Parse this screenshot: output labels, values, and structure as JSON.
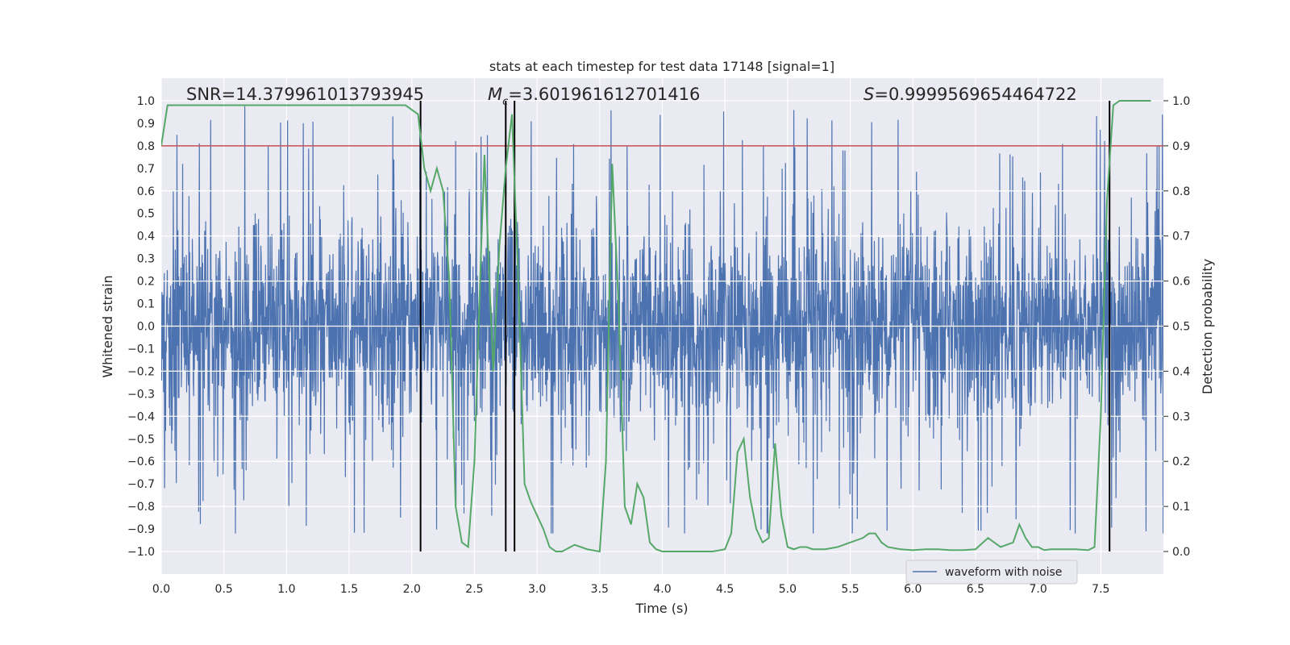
{
  "chart_data": {
    "type": "line",
    "title": "stats at each timestep for test data 17148 [signal=1]",
    "xlabel": "Time (s)",
    "ylabel_left": "Whitened strain",
    "ylabel_right": "Detection probability",
    "xlim": [
      0.0,
      8.0
    ],
    "ylim_left": [
      -1.1,
      1.1
    ],
    "ylim_right": [
      -0.05,
      1.05
    ],
    "x_ticks": [
      "0.0",
      "0.5",
      "1.0",
      "1.5",
      "2.0",
      "2.5",
      "3.0",
      "3.5",
      "4.0",
      "4.5",
      "5.0",
      "5.5",
      "6.0",
      "6.5",
      "7.0",
      "7.5"
    ],
    "y_left_ticks": [
      "1.0",
      "0.9",
      "0.8",
      "0.7",
      "0.6",
      "0.5",
      "0.4",
      "0.3",
      "0.2",
      "0.1",
      "0.0",
      "−0.1",
      "−0.2",
      "−0.3",
      "−0.4",
      "−0.5",
      "−0.6",
      "−0.7",
      "−0.8",
      "−0.9",
      "−1.0"
    ],
    "y_right_ticks": [
      "1.0",
      "0.9",
      "0.8",
      "0.7",
      "0.6",
      "0.5",
      "0.4",
      "0.3",
      "0.2",
      "0.1",
      "0.0"
    ],
    "grid": true,
    "annotations": {
      "snr": "SNR=14.379961013793945",
      "mc_symbol": "M",
      "mc_subscript": "c",
      "mc_value": "=3.601961612701416",
      "s_symbol": "S",
      "s_value": "=0.9999569654464722"
    },
    "threshold": {
      "value": 0.9,
      "axis": "right",
      "color": "#c44e52"
    },
    "vertical_markers": [
      2.07,
      2.75,
      2.82,
      7.57
    ],
    "waveform": {
      "name": "waveform with noise",
      "color": "#4c72b0",
      "x_range": [
        0.0,
        8.0
      ],
      "typical_amplitude": 0.38,
      "min_value": -0.92,
      "max_value": 0.98
    },
    "detection_probability": {
      "color": "#55a868",
      "x": [
        0.0,
        0.05,
        0.1,
        0.2,
        0.3,
        0.5,
        1.0,
        1.5,
        1.95,
        2.0,
        2.05,
        2.1,
        2.15,
        2.2,
        2.25,
        2.3,
        2.35,
        2.4,
        2.45,
        2.5,
        2.55,
        2.58,
        2.62,
        2.65,
        2.7,
        2.75,
        2.8,
        2.85,
        2.9,
        2.95,
        3.0,
        3.05,
        3.1,
        3.15,
        3.2,
        3.3,
        3.4,
        3.5,
        3.55,
        3.6,
        3.65,
        3.7,
        3.75,
        3.8,
        3.85,
        3.9,
        3.95,
        4.0,
        4.1,
        4.2,
        4.3,
        4.4,
        4.5,
        4.55,
        4.6,
        4.65,
        4.7,
        4.75,
        4.8,
        4.85,
        4.9,
        4.95,
        5.0,
        5.05,
        5.1,
        5.15,
        5.2,
        5.3,
        5.4,
        5.5,
        5.6,
        5.65,
        5.7,
        5.75,
        5.8,
        5.9,
        6.0,
        6.1,
        6.2,
        6.3,
        6.4,
        6.5,
        6.6,
        6.65,
        6.7,
        6.8,
        6.85,
        6.9,
        6.95,
        7.0,
        7.05,
        7.1,
        7.2,
        7.3,
        7.4,
        7.45,
        7.5,
        7.55,
        7.6,
        7.65,
        7.7,
        7.75,
        7.8,
        7.85,
        7.9
      ],
      "y": [
        0.9,
        0.99,
        0.99,
        0.99,
        0.99,
        0.99,
        0.99,
        0.99,
        0.99,
        0.98,
        0.97,
        0.85,
        0.8,
        0.85,
        0.8,
        0.6,
        0.1,
        0.02,
        0.01,
        0.2,
        0.64,
        0.88,
        0.6,
        0.4,
        0.68,
        0.85,
        0.97,
        0.6,
        0.15,
        0.11,
        0.08,
        0.05,
        0.01,
        0.0,
        0.0,
        0.015,
        0.005,
        0.0,
        0.2,
        0.86,
        0.55,
        0.1,
        0.06,
        0.15,
        0.12,
        0.02,
        0.005,
        0.0,
        0.0,
        0.0,
        0.0,
        0.0,
        0.005,
        0.04,
        0.22,
        0.25,
        0.12,
        0.05,
        0.02,
        0.03,
        0.24,
        0.08,
        0.01,
        0.005,
        0.01,
        0.01,
        0.005,
        0.005,
        0.01,
        0.02,
        0.03,
        0.04,
        0.04,
        0.02,
        0.01,
        0.005,
        0.003,
        0.005,
        0.005,
        0.003,
        0.003,
        0.005,
        0.03,
        0.02,
        0.01,
        0.02,
        0.06,
        0.03,
        0.01,
        0.01,
        0.003,
        0.005,
        0.005,
        0.005,
        0.003,
        0.01,
        0.3,
        0.78,
        0.99,
        1.0,
        1.0,
        1.0,
        1.0,
        1.0,
        1.0
      ]
    },
    "legend": {
      "placement": "lower-right",
      "entries": [
        "waveform with noise"
      ]
    }
  }
}
